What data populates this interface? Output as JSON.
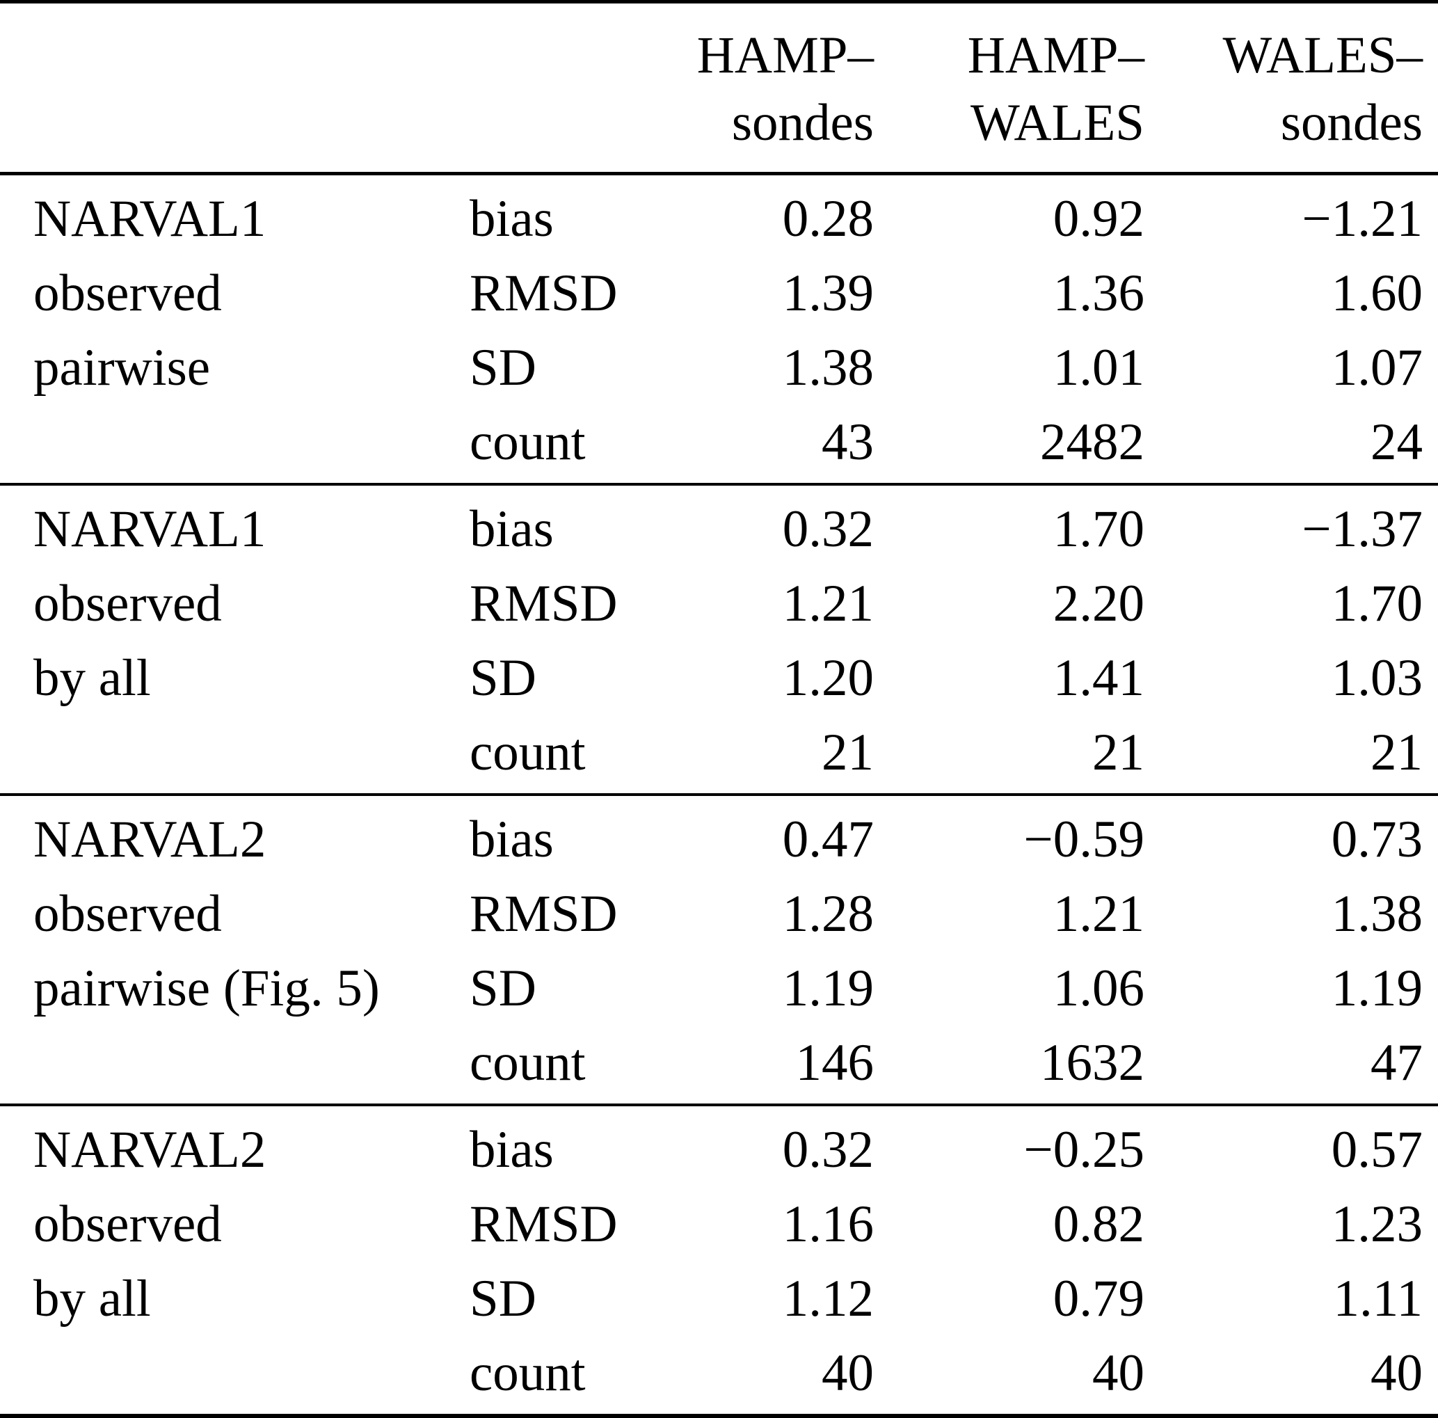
{
  "table": {
    "header": {
      "columns": [
        {
          "line1": "HAMP–",
          "line2": "sondes"
        },
        {
          "line1": "HAMP–",
          "line2": "WALES"
        },
        {
          "line1": "WALES–",
          "line2": "sondes"
        }
      ]
    },
    "stat_labels": [
      "bias",
      "RMSD",
      "SD",
      "count"
    ],
    "groups": [
      {
        "label_lines": [
          "NARVAL1",
          "observed",
          "pairwise",
          ""
        ],
        "rows": [
          {
            "stat": "bias",
            "values": [
              "0.28",
              "0.92",
              "−1.21"
            ]
          },
          {
            "stat": "RMSD",
            "values": [
              "1.39",
              "1.36",
              "1.60"
            ]
          },
          {
            "stat": "SD",
            "values": [
              "1.38",
              "1.01",
              "1.07"
            ]
          },
          {
            "stat": "count",
            "values": [
              "43",
              "2482",
              "24"
            ]
          }
        ]
      },
      {
        "label_lines": [
          "NARVAL1",
          "observed",
          "by all",
          ""
        ],
        "rows": [
          {
            "stat": "bias",
            "values": [
              "0.32",
              "1.70",
              "−1.37"
            ]
          },
          {
            "stat": "RMSD",
            "values": [
              "1.21",
              "2.20",
              "1.70"
            ]
          },
          {
            "stat": "SD",
            "values": [
              "1.20",
              "1.41",
              "1.03"
            ]
          },
          {
            "stat": "count",
            "values": [
              "21",
              "21",
              "21"
            ]
          }
        ]
      },
      {
        "label_lines": [
          "NARVAL2",
          "observed",
          "pairwise (Fig. 5)",
          ""
        ],
        "rows": [
          {
            "stat": "bias",
            "values": [
              "0.47",
              "−0.59",
              "0.73"
            ]
          },
          {
            "stat": "RMSD",
            "values": [
              "1.28",
              "1.21",
              "1.38"
            ]
          },
          {
            "stat": "SD",
            "values": [
              "1.19",
              "1.06",
              "1.19"
            ]
          },
          {
            "stat": "count",
            "values": [
              "146",
              "1632",
              "47"
            ]
          }
        ]
      },
      {
        "label_lines": [
          "NARVAL2",
          "observed",
          "by all",
          ""
        ],
        "rows": [
          {
            "stat": "bias",
            "values": [
              "0.32",
              "−0.25",
              "0.57"
            ]
          },
          {
            "stat": "RMSD",
            "values": [
              "1.16",
              "0.82",
              "1.23"
            ]
          },
          {
            "stat": "SD",
            "values": [
              "1.12",
              "0.79",
              "1.11"
            ]
          },
          {
            "stat": "count",
            "values": [
              "40",
              "40",
              "40"
            ]
          }
        ]
      }
    ]
  },
  "chart_data": {
    "type": "table",
    "columns": [
      "group",
      "statistic",
      "HAMP–sondes",
      "HAMP–WALES",
      "WALES–sondes"
    ],
    "rows": [
      [
        "NARVAL1 observed pairwise",
        "bias",
        0.28,
        0.92,
        -1.21
      ],
      [
        "NARVAL1 observed pairwise",
        "RMSD",
        1.39,
        1.36,
        1.6
      ],
      [
        "NARVAL1 observed pairwise",
        "SD",
        1.38,
        1.01,
        1.07
      ],
      [
        "NARVAL1 observed pairwise",
        "count",
        43,
        2482,
        24
      ],
      [
        "NARVAL1 observed by all",
        "bias",
        0.32,
        1.7,
        -1.37
      ],
      [
        "NARVAL1 observed by all",
        "RMSD",
        1.21,
        2.2,
        1.7
      ],
      [
        "NARVAL1 observed by all",
        "SD",
        1.2,
        1.41,
        1.03
      ],
      [
        "NARVAL1 observed by all",
        "count",
        21,
        21,
        21
      ],
      [
        "NARVAL2 observed pairwise (Fig. 5)",
        "bias",
        0.47,
        -0.59,
        0.73
      ],
      [
        "NARVAL2 observed pairwise (Fig. 5)",
        "RMSD",
        1.28,
        1.21,
        1.38
      ],
      [
        "NARVAL2 observed pairwise (Fig. 5)",
        "SD",
        1.19,
        1.06,
        1.19
      ],
      [
        "NARVAL2 observed pairwise (Fig. 5)",
        "count",
        146,
        1632,
        47
      ],
      [
        "NARVAL2 observed by all",
        "bias",
        0.32,
        -0.25,
        0.57
      ],
      [
        "NARVAL2 observed by all",
        "RMSD",
        1.16,
        0.82,
        1.23
      ],
      [
        "NARVAL2 observed by all",
        "SD",
        1.12,
        0.79,
        1.11
      ],
      [
        "NARVAL2 observed by all",
        "count",
        40,
        40,
        40
      ]
    ]
  }
}
